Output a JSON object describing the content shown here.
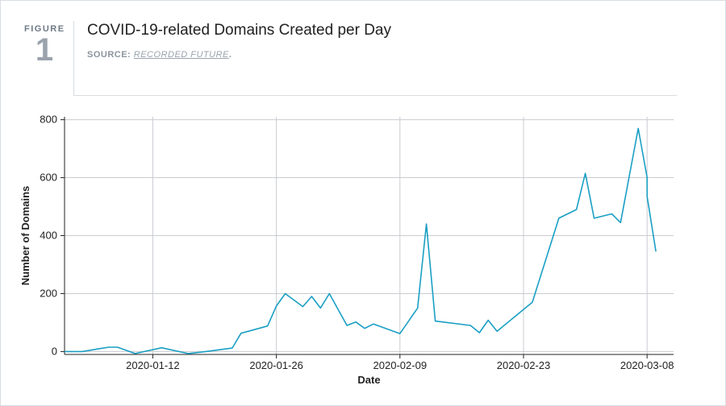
{
  "figure": {
    "label": "FIGURE",
    "number": "1",
    "title": "COVID-19-related Domains Created per Day",
    "source_prefix": "SOURCE: ",
    "source_link": "RECORDED FUTURE",
    "source_suffix": "."
  },
  "colors": {
    "line": "#1a9fc4",
    "grid": "#c9ccd0",
    "axis": "#222222",
    "muted": "#9aa3ad"
  },
  "chart_data": {
    "type": "line",
    "title": "COVID-19-related Domains Created per Day",
    "xlabel": "Date",
    "ylabel": "Number of Domains",
    "x_ticks": [
      "2020-01-12",
      "2020-01-26",
      "2020-02-09",
      "2020-02-23",
      "2020-03-08"
    ],
    "y_ticks": [
      0,
      200,
      400,
      600,
      800
    ],
    "xlim": [
      "2020-01-02",
      "2020-03-11"
    ],
    "ylim": [
      -10,
      810
    ],
    "grid": true,
    "series": [
      {
        "x": [
          "2020-01-02",
          "2020-01-04",
          "2020-01-07",
          "2020-01-08",
          "2020-01-10",
          "2020-01-13",
          "2020-01-16",
          "2020-01-18",
          "2020-01-21",
          "2020-01-22",
          "2020-01-25",
          "2020-01-26",
          "2020-01-27",
          "2020-01-29",
          "2020-01-30",
          "2020-01-31",
          "2020-02-01",
          "2020-02-03",
          "2020-02-04",
          "2020-02-05",
          "2020-02-06",
          "2020-02-09",
          "2020-02-11",
          "2020-02-12",
          "2020-02-13",
          "2020-02-17",
          "2020-02-18",
          "2020-02-19",
          "2020-02-20",
          "2020-02-24",
          "2020-02-27",
          "2020-02-29",
          "2020-03-01",
          "2020-03-02",
          "2020-03-04",
          "2020-03-05",
          "2020-03-07",
          "2020-03-08",
          "2020-03-08",
          "2020-03-09"
        ],
        "values": [
          0,
          0,
          15,
          15,
          -7,
          13,
          -7,
          0,
          12,
          63,
          88,
          157,
          200,
          155,
          190,
          150,
          200,
          90,
          102,
          80,
          95,
          62,
          150,
          440,
          105,
          90,
          65,
          108,
          70,
          170,
          460,
          490,
          615,
          460,
          475,
          445,
          770,
          600,
          535,
          345
        ]
      }
    ]
  }
}
